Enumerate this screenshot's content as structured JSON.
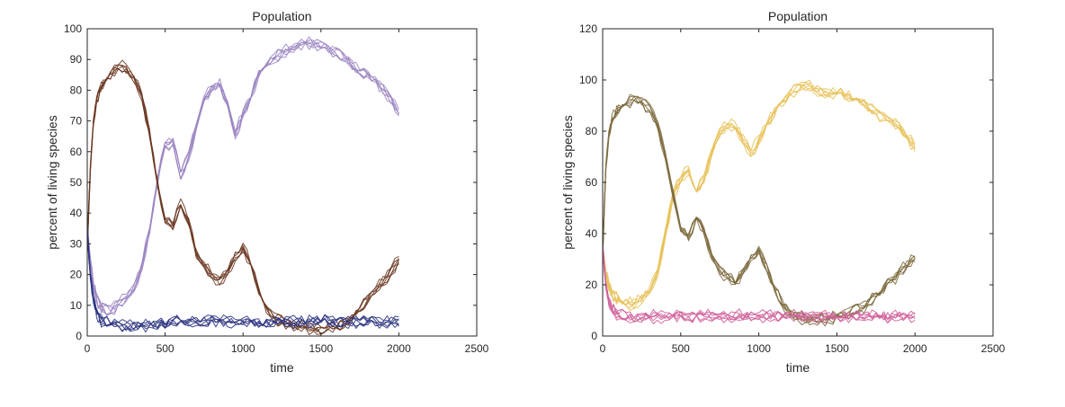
{
  "chart_data": [
    {
      "type": "line",
      "title": "Population",
      "xlabel": "time",
      "ylabel": "percent of living species",
      "xlim": [
        0,
        2500
      ],
      "ylim": [
        0,
        100
      ],
      "xticks": [
        0,
        500,
        1000,
        1500,
        2000,
        2500
      ],
      "yticks": [
        0,
        10,
        20,
        30,
        40,
        50,
        60,
        70,
        80,
        90,
        100
      ],
      "grid": false,
      "legend": "none",
      "series": [
        {
          "color": "#9c86c2",
          "runs": 6,
          "x": [
            0,
            20,
            40,
            60,
            80,
            100,
            150,
            200,
            250,
            300,
            350,
            400,
            450,
            500,
            550,
            600,
            650,
            700,
            750,
            800,
            850,
            900,
            950,
            1000,
            1050,
            1100,
            1150,
            1200,
            1250,
            1300,
            1350,
            1400,
            1450,
            1500,
            1550,
            1600,
            1650,
            1700,
            1750,
            1800,
            1850,
            1900,
            1950,
            2000
          ],
          "y": [
            35,
            24,
            16,
            12,
            10,
            9,
            8,
            10,
            12,
            15,
            22,
            34,
            50,
            62,
            63,
            52,
            58,
            68,
            77,
            80,
            82,
            75,
            65,
            72,
            77,
            85,
            88,
            90,
            92,
            93,
            94,
            95,
            95,
            94,
            93,
            92,
            90,
            88,
            86,
            85,
            83,
            80,
            77,
            72
          ]
        },
        {
          "color": "#6b3a24",
          "runs": 6,
          "x": [
            0,
            20,
            40,
            60,
            80,
            100,
            150,
            200,
            250,
            300,
            350,
            400,
            450,
            500,
            550,
            600,
            650,
            700,
            750,
            800,
            850,
            900,
            950,
            1000,
            1050,
            1100,
            1150,
            1200,
            1250,
            1300,
            1350,
            1400,
            1450,
            1500,
            1550,
            1600,
            1650,
            1700,
            1750,
            1800,
            1850,
            1900,
            1950,
            2000
          ],
          "y": [
            28,
            55,
            70,
            77,
            80,
            82,
            85,
            88,
            87,
            84,
            78,
            66,
            50,
            38,
            36,
            43,
            37,
            27,
            23,
            20,
            18,
            21,
            26,
            29,
            23,
            15,
            9,
            6,
            5,
            4,
            3,
            3,
            2,
            2,
            3,
            3,
            4,
            6,
            9,
            12,
            15,
            18,
            21,
            25
          ]
        },
        {
          "color": "#2e3582",
          "runs": 6,
          "x": [
            0,
            20,
            40,
            60,
            80,
            100,
            150,
            200,
            250,
            300,
            350,
            400,
            450,
            500,
            550,
            600,
            650,
            700,
            750,
            800,
            850,
            900,
            950,
            1000,
            1050,
            1100,
            1150,
            1200,
            1250,
            1300,
            1350,
            1400,
            1450,
            1500,
            1550,
            1600,
            1650,
            1700,
            1750,
            1800,
            1850,
            1900,
            1950,
            2000
          ],
          "y": [
            35,
            20,
            12,
            8,
            6,
            5,
            4,
            3.5,
            3.5,
            3.5,
            4,
            4,
            4,
            4.5,
            5,
            5,
            5,
            5,
            5,
            5.5,
            5.5,
            5,
            5,
            5,
            5,
            4.5,
            4.5,
            5,
            5,
            5,
            5,
            5,
            5,
            5,
            5,
            5,
            5,
            5,
            5,
            5,
            5,
            5,
            5,
            5
          ]
        }
      ]
    },
    {
      "type": "line",
      "title": "Population",
      "xlabel": "time",
      "ylabel": "percent of living species",
      "xlim": [
        0,
        2500
      ],
      "ylim": [
        0,
        120
      ],
      "xticks": [
        0,
        500,
        1000,
        1500,
        2000,
        2500
      ],
      "yticks": [
        0,
        20,
        40,
        60,
        80,
        100,
        120
      ],
      "grid": false,
      "legend": "none",
      "series": [
        {
          "color": "#e8c25a",
          "runs": 6,
          "x": [
            0,
            20,
            40,
            60,
            80,
            100,
            150,
            200,
            250,
            300,
            350,
            400,
            450,
            500,
            550,
            600,
            650,
            700,
            750,
            800,
            850,
            900,
            950,
            1000,
            1050,
            1100,
            1150,
            1200,
            1250,
            1300,
            1350,
            1400,
            1450,
            1500,
            1550,
            1600,
            1650,
            1700,
            1750,
            1800,
            1850,
            1900,
            1950,
            2000
          ],
          "y": [
            35,
            25,
            20,
            17,
            16,
            15,
            13,
            13,
            15,
            18,
            25,
            40,
            55,
            62,
            65,
            57,
            62,
            72,
            80,
            83,
            82,
            77,
            72,
            77,
            83,
            88,
            92,
            95,
            97,
            98,
            97,
            96,
            95,
            95,
            94,
            93,
            92,
            90,
            88,
            86,
            84,
            82,
            78,
            74
          ]
        },
        {
          "color": "#7d6b3e",
          "runs": 6,
          "x": [
            0,
            20,
            40,
            60,
            80,
            100,
            150,
            200,
            250,
            300,
            350,
            400,
            450,
            500,
            550,
            600,
            650,
            700,
            750,
            800,
            850,
            900,
            950,
            1000,
            1050,
            1100,
            1150,
            1200,
            1250,
            1300,
            1350,
            1400,
            1450,
            1500,
            1550,
            1600,
            1650,
            1700,
            1750,
            1800,
            1850,
            1900,
            1950,
            2000
          ],
          "y": [
            30,
            65,
            78,
            84,
            86,
            88,
            90,
            92,
            91,
            88,
            82,
            70,
            55,
            42,
            38,
            46,
            40,
            30,
            25,
            22,
            20,
            24,
            30,
            33,
            26,
            18,
            12,
            8,
            7,
            6,
            6,
            6,
            6,
            7,
            8,
            9,
            10,
            12,
            15,
            18,
            21,
            24,
            27,
            30
          ]
        },
        {
          "color": "#d0609a",
          "runs": 6,
          "x": [
            0,
            20,
            40,
            60,
            80,
            100,
            150,
            200,
            250,
            300,
            350,
            400,
            450,
            500,
            550,
            600,
            650,
            700,
            750,
            800,
            850,
            900,
            950,
            1000,
            1050,
            1100,
            1150,
            1200,
            1250,
            1300,
            1350,
            1400,
            1450,
            1500,
            1550,
            1600,
            1650,
            1700,
            1750,
            1800,
            1850,
            1900,
            1950,
            2000
          ],
          "y": [
            35,
            20,
            13,
            10,
            9,
            8,
            7,
            7,
            7,
            7,
            7.5,
            7.5,
            7.5,
            7.5,
            7.5,
            7.5,
            7.5,
            7.5,
            7.5,
            7.5,
            7.5,
            7.5,
            7.5,
            7.5,
            7.5,
            7.5,
            7.5,
            7.5,
            7.5,
            7.5,
            7.5,
            7.5,
            7.5,
            7.5,
            7.5,
            7.5,
            7.5,
            7.5,
            7.5,
            7.5,
            7.5,
            7.5,
            7.5,
            7.5
          ]
        }
      ]
    }
  ]
}
